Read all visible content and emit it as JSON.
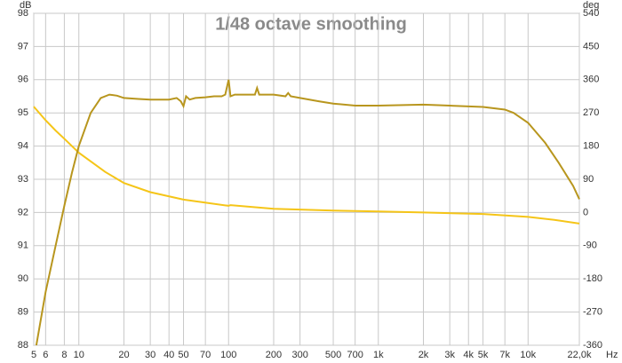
{
  "chart_data": {
    "type": "line",
    "title": "1/48 octave smoothing",
    "y_label": "dB",
    "y2_label": "deg",
    "x_unit": "Hz",
    "log_x": true,
    "grid": true,
    "xlim": [
      5,
      22000
    ],
    "xticks": [
      5,
      6,
      8,
      10,
      20,
      30,
      40,
      50,
      70,
      100,
      200,
      300,
      500,
      700,
      {
        "value": 1000,
        "label": "1k"
      },
      {
        "value": 2000,
        "label": "2k"
      },
      {
        "value": 3000,
        "label": "3k"
      },
      {
        "value": 4000,
        "label": "4k"
      },
      {
        "value": 5000,
        "label": "5k"
      },
      {
        "value": 7000,
        "label": "7k"
      },
      {
        "value": 10000,
        "label": "10k"
      },
      {
        "value": 22000,
        "label": "22,0k"
      }
    ],
    "ylim": [
      88,
      98
    ],
    "yticks": [
      88,
      89,
      90,
      91,
      92,
      93,
      94,
      95,
      96,
      97,
      98
    ],
    "y2lim": [
      -360,
      540
    ],
    "y2ticks": [
      -360,
      -270,
      -180,
      -90,
      0,
      90,
      180,
      270,
      360,
      450,
      540
    ],
    "series": [
      {
        "color": "#b8961e",
        "x": [
          5.2,
          6,
          7,
          8,
          9,
          10,
          12,
          14,
          16,
          18,
          20,
          25,
          30,
          40,
          45,
          48,
          50,
          52,
          55,
          60,
          70,
          80,
          90,
          95,
          100,
          103,
          110,
          130,
          150,
          155,
          160,
          200,
          240,
          250,
          260,
          300,
          400,
          500,
          700,
          1000,
          2000,
          3000,
          5000,
          7000,
          8000,
          10000,
          13000,
          16000,
          20000,
          22000
        ],
        "values": [
          88.0,
          89.6,
          91.0,
          92.2,
          93.2,
          94.0,
          95.0,
          95.45,
          95.55,
          95.52,
          95.45,
          95.42,
          95.4,
          95.4,
          95.45,
          95.35,
          95.2,
          95.5,
          95.4,
          95.45,
          95.47,
          95.5,
          95.5,
          95.55,
          96.0,
          95.5,
          95.55,
          95.55,
          95.55,
          95.75,
          95.55,
          95.55,
          95.5,
          95.6,
          95.5,
          95.45,
          95.35,
          95.28,
          95.22,
          95.22,
          95.25,
          95.22,
          95.18,
          95.1,
          95.0,
          94.7,
          94.1,
          93.5,
          92.8,
          92.4
        ]
      },
      {
        "color": "#f5c518",
        "axis": "y2",
        "x": [
          5,
          6,
          7,
          8,
          10,
          15,
          20,
          30,
          50,
          100,
          103,
          200,
          500,
          1000,
          2000,
          5000,
          10000,
          15000,
          22000
        ],
        "values": [
          287,
          250,
          222,
          200,
          162,
          110,
          80,
          55,
          35,
          18,
          20,
          10,
          5,
          3,
          0,
          -4,
          -12,
          -20,
          -30
        ]
      }
    ]
  }
}
